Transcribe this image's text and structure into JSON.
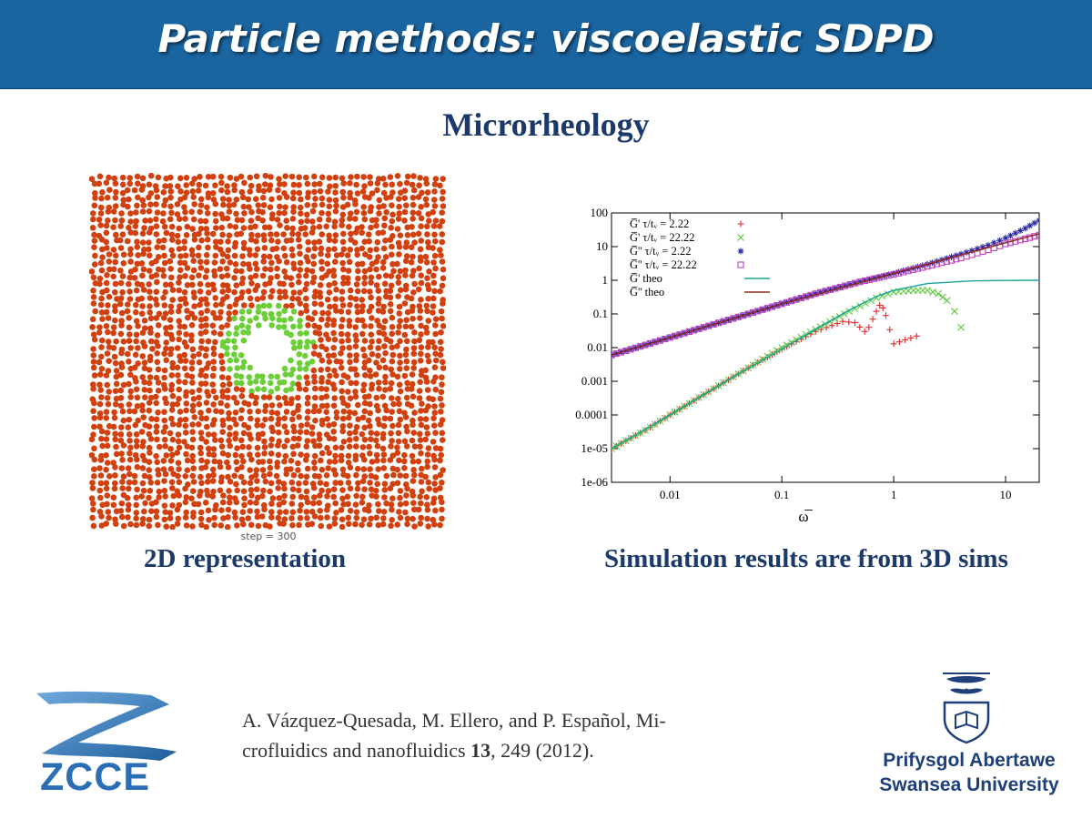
{
  "header": {
    "title": "Particle methods: viscoelastic SDPD"
  },
  "subtitle": "Microrheology",
  "left_panel": {
    "step_label": "step = 300",
    "caption": "2D representation"
  },
  "right_panel": {
    "caption": "Simulation results are from 3D sims"
  },
  "citation": {
    "line1": "A. Vázquez-Quesada, M. Ellero, and P. Español, Mi-",
    "line2_pre": "crofluidics and nanofluidics ",
    "volume": "13",
    "line2_post": ", 249 (2012)."
  },
  "logos": {
    "zcce": "ZCCE",
    "university_line1": "Prifysgol Abertawe",
    "university_line2": "Swansea University"
  },
  "colors": {
    "banner": "#1a64a0",
    "heading": "#1b3a6b",
    "particles": "#d2400f",
    "ring": "#6ccf3a",
    "red": "#e0282e",
    "green": "#5ac83c",
    "blue": "#2a2aa0",
    "magenta": "#c040c0",
    "teal": "#1aa39a",
    "brown": "#8a2a1a"
  },
  "chart_data": {
    "type": "scatter",
    "xscale": "log",
    "yscale": "log",
    "xlabel": "ω̅",
    "ylabel": "",
    "xlim": [
      0.003,
      20
    ],
    "ylim": [
      1e-06,
      100
    ],
    "x_ticks": [
      "0.01",
      "0.1",
      "1",
      "10"
    ],
    "y_ticks": [
      "1e-06",
      "1e-05",
      "0.0001",
      "0.001",
      "0.01",
      "0.1",
      "1",
      "10",
      "100"
    ],
    "legend_position": "top-left",
    "series": [
      {
        "name": "G̅'   τ/tᵥ = 2.22",
        "marker": "+",
        "color": "#e0282e",
        "x": [
          0.003,
          0.006,
          0.01,
          0.02,
          0.05,
          0.1,
          0.2,
          0.35,
          0.45,
          0.55,
          0.6,
          0.65,
          0.7,
          0.75,
          0.8,
          0.85,
          1.0,
          1.6
        ],
        "y": [
          1e-05,
          3.5e-05,
          0.0001,
          0.0004,
          0.0025,
          0.009,
          0.03,
          0.06,
          0.055,
          0.03,
          0.04,
          0.07,
          0.12,
          0.18,
          0.15,
          0.09,
          0.013,
          0.022
        ]
      },
      {
        "name": "G̅'   τ/tᵥ = 22.22",
        "marker": "x",
        "color": "#5ac83c",
        "x": [
          0.003,
          0.006,
          0.01,
          0.02,
          0.05,
          0.1,
          0.2,
          0.4,
          0.7,
          1.0,
          1.5,
          2.0,
          2.5,
          3.0,
          3.5,
          4.0
        ],
        "y": [
          1e-05,
          3.5e-05,
          0.0001,
          0.0004,
          0.0025,
          0.01,
          0.035,
          0.12,
          0.3,
          0.45,
          0.5,
          0.5,
          0.4,
          0.25,
          0.12,
          0.04
        ]
      },
      {
        "name": "G̅''  τ/tᵥ = 2.22",
        "marker": "*",
        "color": "#2a2aa0",
        "x": [
          0.003,
          0.006,
          0.01,
          0.02,
          0.05,
          0.1,
          0.2,
          0.5,
          1.0,
          2.0,
          4.0,
          7.0,
          10.0,
          15.0,
          20.0
        ],
        "y": [
          0.006,
          0.012,
          0.02,
          0.04,
          0.1,
          0.2,
          0.4,
          0.9,
          1.6,
          3.0,
          6.0,
          11.0,
          18.0,
          35.0,
          60.0
        ]
      },
      {
        "name": "G̅''  τ/tᵥ = 22.22",
        "marker": "square",
        "color": "#c040c0",
        "x": [
          0.003,
          0.006,
          0.01,
          0.02,
          0.05,
          0.1,
          0.2,
          0.5,
          1.0,
          2.0,
          4.0,
          7.0,
          10.0,
          15.0,
          20.0
        ],
        "y": [
          0.006,
          0.012,
          0.02,
          0.04,
          0.1,
          0.2,
          0.4,
          0.9,
          1.5,
          2.6,
          4.6,
          8.0,
          12.0,
          17.0,
          22.0
        ]
      },
      {
        "name": "G̅' theo",
        "line": true,
        "color": "#1aa39a",
        "x": [
          0.003,
          0.01,
          0.03,
          0.1,
          0.2,
          0.4,
          0.7,
          1.0,
          2.0,
          5.0,
          10.0,
          20.0
        ],
        "y": [
          1e-05,
          0.0001,
          0.0009,
          0.009,
          0.035,
          0.13,
          0.33,
          0.5,
          0.8,
          0.96,
          0.99,
          1.0
        ]
      },
      {
        "name": "G̅'' theo",
        "line": true,
        "color": "#8a2a1a",
        "x": [
          0.003,
          0.01,
          0.1,
          1.0,
          10.0,
          20.0
        ],
        "y": [
          0.006,
          0.02,
          0.2,
          1.6,
          13.0,
          24.0
        ]
      }
    ]
  }
}
